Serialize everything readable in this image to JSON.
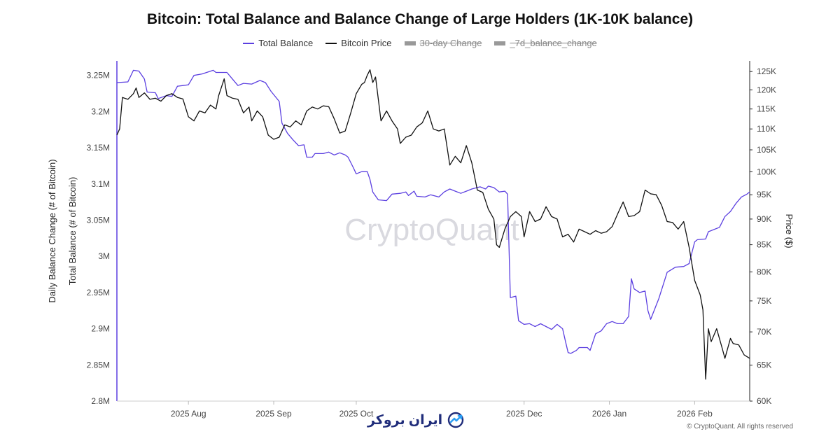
{
  "title": "Bitcoin: Total Balance and Balance Change of Large Holders (1K-10K balance)",
  "legend": [
    {
      "label": "Total Balance",
      "color": "#5b3fe0",
      "hidden": false
    },
    {
      "label": "Bitcoin Price",
      "color": "#111111",
      "hidden": false
    },
    {
      "label": "30-day Change",
      "color": "#999999",
      "hidden": true
    },
    {
      "label": "_7d_balance_change",
      "color": "#999999",
      "hidden": true
    }
  ],
  "watermark": "CryptoQuant",
  "logo_text": "ایران بروکر",
  "copyright": "© CryptoQuant. All rights reserved",
  "chart_data": {
    "type": "line",
    "left_axis_titles": [
      "Daily Balance Change (# of Bitcoin)",
      "Total Balance (# of Bitcoin)"
    ],
    "right_axis_title": "Price ($)",
    "left_ticks": [
      "3.25M",
      "3.2M",
      "3.15M",
      "3.1M",
      "3.05M",
      "3M",
      "2.95M",
      "2.9M",
      "2.85M",
      "2.8M"
    ],
    "left_tick_values": [
      3250000,
      3200000,
      3150000,
      3100000,
      3050000,
      3000000,
      2950000,
      2900000,
      2850000,
      2800000
    ],
    "left_range": [
      2800000,
      3270000
    ],
    "right_ticks": [
      "125K",
      "120K",
      "115K",
      "110K",
      "105K",
      "100K",
      "95K",
      "90K",
      "85K",
      "80K",
      "75K",
      "70K",
      "65K",
      "60K"
    ],
    "right_tick_values": [
      125000,
      120000,
      115000,
      110000,
      105000,
      100000,
      95000,
      90000,
      85000,
      80000,
      75000,
      70000,
      65000,
      60000
    ],
    "right_scale": "log",
    "right_range": [
      60000,
      128000
    ],
    "x_ticks": [
      "2025 Aug",
      "2025 Sep",
      "2025 Oct",
      "2025 Dec",
      "2026 Jan",
      "2026 Feb"
    ],
    "x_tick_dates": [
      "2025-08-01",
      "2025-09-01",
      "2025-10-01",
      "2025-12-01",
      "2026-01-01",
      "2026-02-01"
    ],
    "x_range": [
      "2025-07-06",
      "2026-02-21"
    ],
    "grid": false,
    "series": [
      {
        "name": "Total Balance",
        "color": "#5b3fe0",
        "axis": "left",
        "points": [
          [
            "2025-07-06",
            3240000
          ],
          [
            "2025-07-10",
            3241000
          ],
          [
            "2025-07-12",
            3257000
          ],
          [
            "2025-07-14",
            3256000
          ],
          [
            "2025-07-16",
            3245000
          ],
          [
            "2025-07-17",
            3227000
          ],
          [
            "2025-07-20",
            3226000
          ],
          [
            "2025-07-21",
            3218000
          ],
          [
            "2025-07-24",
            3222000
          ],
          [
            "2025-07-26",
            3221000
          ],
          [
            "2025-07-28",
            3235000
          ],
          [
            "2025-07-30",
            3236000
          ],
          [
            "2025-08-01",
            3237000
          ],
          [
            "2025-08-03",
            3250000
          ],
          [
            "2025-08-06",
            3252000
          ],
          [
            "2025-08-10",
            3257000
          ],
          [
            "2025-08-11",
            3254000
          ],
          [
            "2025-08-15",
            3254000
          ],
          [
            "2025-08-17",
            3245000
          ],
          [
            "2025-08-19",
            3236000
          ],
          [
            "2025-08-21",
            3239000
          ],
          [
            "2025-08-24",
            3238000
          ],
          [
            "2025-08-27",
            3243000
          ],
          [
            "2025-08-29",
            3240000
          ],
          [
            "2025-08-31",
            3228000
          ],
          [
            "2025-09-03",
            3214000
          ],
          [
            "2025-09-04",
            3184000
          ],
          [
            "2025-09-06",
            3170000
          ],
          [
            "2025-09-08",
            3161000
          ],
          [
            "2025-09-10",
            3153000
          ],
          [
            "2025-09-12",
            3154000
          ],
          [
            "2025-09-13",
            3137000
          ],
          [
            "2025-09-15",
            3137000
          ],
          [
            "2025-09-16",
            3142000
          ],
          [
            "2025-09-19",
            3142000
          ],
          [
            "2025-09-21",
            3144000
          ],
          [
            "2025-09-23",
            3140000
          ],
          [
            "2025-09-25",
            3143000
          ],
          [
            "2025-09-27",
            3140000
          ],
          [
            "2025-09-28",
            3137000
          ],
          [
            "2025-09-30",
            3122000
          ],
          [
            "2025-10-01",
            3114000
          ],
          [
            "2025-10-03",
            3117000
          ],
          [
            "2025-10-05",
            3117000
          ],
          [
            "2025-10-06",
            3106000
          ],
          [
            "2025-10-07",
            3089000
          ],
          [
            "2025-10-09",
            3078000
          ],
          [
            "2025-10-12",
            3077000
          ],
          [
            "2025-10-14",
            3086000
          ],
          [
            "2025-10-17",
            3087000
          ],
          [
            "2025-10-19",
            3089000
          ],
          [
            "2025-10-20",
            3084000
          ],
          [
            "2025-10-22",
            3090000
          ],
          [
            "2025-10-23",
            3083000
          ],
          [
            "2025-10-26",
            3082000
          ],
          [
            "2025-10-28",
            3085000
          ],
          [
            "2025-10-31",
            3082000
          ],
          [
            "2025-11-02",
            3089000
          ],
          [
            "2025-11-04",
            3093000
          ],
          [
            "2025-11-06",
            3090000
          ],
          [
            "2025-11-08",
            3087000
          ],
          [
            "2025-11-10",
            3090000
          ],
          [
            "2025-11-12",
            3093000
          ],
          [
            "2025-11-15",
            3096000
          ],
          [
            "2025-11-17",
            3093000
          ],
          [
            "2025-11-18",
            3097000
          ],
          [
            "2025-11-20",
            3095000
          ],
          [
            "2025-11-22",
            3089000
          ],
          [
            "2025-11-24",
            3090000
          ],
          [
            "2025-11-25",
            3086000
          ],
          [
            "2025-11-26",
            2943000
          ],
          [
            "2025-11-28",
            2945000
          ],
          [
            "2025-11-29",
            2911000
          ],
          [
            "2025-12-01",
            2906000
          ],
          [
            "2025-12-03",
            2907000
          ],
          [
            "2025-12-05",
            2903000
          ],
          [
            "2025-12-07",
            2907000
          ],
          [
            "2025-12-09",
            2903000
          ],
          [
            "2025-12-11",
            2899000
          ],
          [
            "2025-12-13",
            2906000
          ],
          [
            "2025-12-15",
            2900000
          ],
          [
            "2025-12-16",
            2883000
          ],
          [
            "2025-12-17",
            2867000
          ],
          [
            "2025-12-18",
            2866000
          ],
          [
            "2025-12-20",
            2870000
          ],
          [
            "2025-12-21",
            2874000
          ],
          [
            "2025-12-24",
            2874000
          ],
          [
            "2025-12-25",
            2870000
          ],
          [
            "2025-12-27",
            2893000
          ],
          [
            "2025-12-29",
            2897000
          ],
          [
            "2025-12-31",
            2907000
          ],
          [
            "2026-01-02",
            2910000
          ],
          [
            "2026-01-04",
            2907000
          ],
          [
            "2026-01-06",
            2907000
          ],
          [
            "2026-01-08",
            2917000
          ],
          [
            "2026-01-09",
            2969000
          ],
          [
            "2026-01-10",
            2955000
          ],
          [
            "2026-01-12",
            2950000
          ],
          [
            "2026-01-14",
            2952000
          ],
          [
            "2026-01-15",
            2925000
          ],
          [
            "2026-01-16",
            2913000
          ],
          [
            "2026-01-19",
            2942000
          ],
          [
            "2026-01-22",
            2978000
          ],
          [
            "2026-01-25",
            2985000
          ],
          [
            "2026-01-28",
            2986000
          ],
          [
            "2026-01-30",
            2990000
          ],
          [
            "2026-02-01",
            3020000
          ],
          [
            "2026-02-02",
            3023000
          ],
          [
            "2026-02-05",
            3024000
          ],
          [
            "2026-02-06",
            3034000
          ],
          [
            "2026-02-08",
            3037000
          ],
          [
            "2026-02-10",
            3040000
          ],
          [
            "2026-02-12",
            3055000
          ],
          [
            "2026-02-14",
            3062000
          ],
          [
            "2026-02-16",
            3073000
          ],
          [
            "2026-02-18",
            3082000
          ],
          [
            "2026-02-20",
            3086000
          ],
          [
            "2026-02-21",
            3089000
          ]
        ]
      },
      {
        "name": "Bitcoin Price",
        "color": "#111111",
        "axis": "right",
        "points": [
          [
            "2025-07-06",
            108500
          ],
          [
            "2025-07-07",
            110000
          ],
          [
            "2025-07-08",
            118000
          ],
          [
            "2025-07-10",
            117500
          ],
          [
            "2025-07-12",
            119000
          ],
          [
            "2025-07-13",
            120500
          ],
          [
            "2025-07-14",
            118000
          ],
          [
            "2025-07-16",
            119200
          ],
          [
            "2025-07-18",
            117500
          ],
          [
            "2025-07-20",
            117800
          ],
          [
            "2025-07-22",
            117000
          ],
          [
            "2025-07-24",
            118500
          ],
          [
            "2025-07-26",
            119000
          ],
          [
            "2025-07-28",
            118000
          ],
          [
            "2025-07-30",
            117600
          ],
          [
            "2025-08-01",
            113000
          ],
          [
            "2025-08-03",
            112000
          ],
          [
            "2025-08-05",
            114500
          ],
          [
            "2025-08-07",
            114000
          ],
          [
            "2025-08-09",
            116000
          ],
          [
            "2025-08-11",
            115000
          ],
          [
            "2025-08-12",
            118500
          ],
          [
            "2025-08-14",
            123000
          ],
          [
            "2025-08-15",
            118500
          ],
          [
            "2025-08-17",
            117800
          ],
          [
            "2025-08-19",
            117500
          ],
          [
            "2025-08-21",
            114000
          ],
          [
            "2025-08-23",
            115500
          ],
          [
            "2025-08-24",
            112000
          ],
          [
            "2025-08-26",
            114500
          ],
          [
            "2025-08-28",
            113000
          ],
          [
            "2025-08-30",
            108500
          ],
          [
            "2025-09-01",
            107500
          ],
          [
            "2025-09-03",
            108000
          ],
          [
            "2025-09-05",
            111000
          ],
          [
            "2025-09-07",
            110500
          ],
          [
            "2025-09-09",
            112000
          ],
          [
            "2025-09-11",
            111000
          ],
          [
            "2025-09-13",
            114500
          ],
          [
            "2025-09-15",
            115500
          ],
          [
            "2025-09-17",
            115000
          ],
          [
            "2025-09-19",
            115800
          ],
          [
            "2025-09-21",
            115600
          ],
          [
            "2025-09-23",
            112500
          ],
          [
            "2025-09-25",
            109000
          ],
          [
            "2025-09-27",
            109500
          ],
          [
            "2025-09-29",
            114000
          ],
          [
            "2025-10-01",
            119000
          ],
          [
            "2025-10-03",
            121500
          ],
          [
            "2025-10-04",
            122000
          ],
          [
            "2025-10-05",
            124000
          ],
          [
            "2025-10-06",
            125500
          ],
          [
            "2025-10-07",
            122000
          ],
          [
            "2025-10-08",
            123500
          ],
          [
            "2025-10-10",
            112000
          ],
          [
            "2025-10-12",
            114500
          ],
          [
            "2025-10-14",
            112000
          ],
          [
            "2025-10-16",
            110000
          ],
          [
            "2025-10-17",
            106500
          ],
          [
            "2025-10-19",
            108000
          ],
          [
            "2025-10-21",
            108500
          ],
          [
            "2025-10-23",
            110500
          ],
          [
            "2025-10-25",
            111500
          ],
          [
            "2025-10-27",
            114500
          ],
          [
            "2025-10-29",
            110000
          ],
          [
            "2025-10-31",
            109500
          ],
          [
            "2025-11-02",
            110000
          ],
          [
            "2025-11-04",
            101500
          ],
          [
            "2025-11-06",
            103500
          ],
          [
            "2025-11-08",
            102000
          ],
          [
            "2025-11-10",
            106000
          ],
          [
            "2025-11-12",
            102000
          ],
          [
            "2025-11-14",
            96000
          ],
          [
            "2025-11-16",
            95500
          ],
          [
            "2025-11-18",
            92000
          ],
          [
            "2025-11-20",
            90000
          ],
          [
            "2025-11-21",
            85000
          ],
          [
            "2025-11-22",
            84500
          ],
          [
            "2025-11-24",
            88000
          ],
          [
            "2025-11-26",
            90500
          ],
          [
            "2025-11-28",
            91500
          ],
          [
            "2025-11-30",
            90500
          ],
          [
            "2025-12-01",
            86500
          ],
          [
            "2025-12-03",
            91500
          ],
          [
            "2025-12-05",
            89500
          ],
          [
            "2025-12-07",
            90000
          ],
          [
            "2025-12-09",
            92500
          ],
          [
            "2025-12-11",
            90500
          ],
          [
            "2025-12-13",
            90000
          ],
          [
            "2025-12-15",
            86500
          ],
          [
            "2025-12-17",
            87000
          ],
          [
            "2025-12-19",
            85500
          ],
          [
            "2025-12-21",
            88000
          ],
          [
            "2025-12-23",
            87500
          ],
          [
            "2025-12-25",
            87000
          ],
          [
            "2025-12-27",
            87700
          ],
          [
            "2025-12-29",
            87200
          ],
          [
            "2025-12-31",
            87500
          ],
          [
            "2026-01-02",
            88500
          ],
          [
            "2026-01-04",
            91000
          ],
          [
            "2026-01-06",
            93500
          ],
          [
            "2026-01-08",
            90500
          ],
          [
            "2026-01-10",
            90700
          ],
          [
            "2026-01-12",
            91500
          ],
          [
            "2026-01-14",
            96000
          ],
          [
            "2026-01-16",
            95200
          ],
          [
            "2026-01-18",
            95000
          ],
          [
            "2026-01-20",
            92800
          ],
          [
            "2026-01-22",
            89500
          ],
          [
            "2026-01-24",
            89300
          ],
          [
            "2026-01-26",
            88000
          ],
          [
            "2026-01-28",
            89500
          ],
          [
            "2026-01-30",
            84500
          ],
          [
            "2026-02-01",
            78500
          ],
          [
            "2026-02-03",
            76000
          ],
          [
            "2026-02-04",
            73500
          ],
          [
            "2026-02-05",
            63000
          ],
          [
            "2026-02-06",
            70500
          ],
          [
            "2026-02-07",
            68500
          ],
          [
            "2026-02-09",
            70500
          ],
          [
            "2026-02-11",
            67500
          ],
          [
            "2026-02-12",
            66000
          ],
          [
            "2026-02-14",
            69000
          ],
          [
            "2026-02-15",
            68200
          ],
          [
            "2026-02-17",
            68000
          ],
          [
            "2026-02-19",
            66500
          ],
          [
            "2026-02-21",
            66000
          ]
        ]
      }
    ]
  }
}
